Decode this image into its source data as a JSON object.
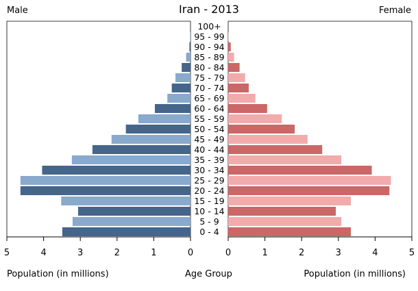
{
  "chart_data": {
    "type": "bar",
    "title": "Iran - 2013",
    "left_label": "Male",
    "right_label": "Female",
    "xlabel_left": "Population (in millions)",
    "xlabel_center": "Age Group",
    "xlabel_right": "Population (in millions)",
    "xlim": [
      0,
      5
    ],
    "x_ticks": [
      "0",
      "1",
      "2",
      "3",
      "4",
      "5"
    ],
    "categories": [
      "100+",
      "95 - 99",
      "90 - 94",
      "85 - 89",
      "80 - 84",
      "75 - 79",
      "70 - 74",
      "65 - 69",
      "60 - 64",
      "55 - 59",
      "50 - 54",
      "45 - 49",
      "40 - 44",
      "35 - 39",
      "30 - 34",
      "25 - 29",
      "20 - 24",
      "15 - 19",
      "10 - 14",
      "5 - 9",
      "0 - 4"
    ],
    "series": [
      {
        "name": "Male",
        "values": [
          0.002,
          0.01,
          0.03,
          0.12,
          0.24,
          0.41,
          0.51,
          0.63,
          0.97,
          1.42,
          1.76,
          2.15,
          2.67,
          3.23,
          4.04,
          4.63,
          4.63,
          3.52,
          3.06,
          3.21,
          3.49
        ]
      },
      {
        "name": "Female",
        "values": [
          0.002,
          0.01,
          0.07,
          0.16,
          0.31,
          0.46,
          0.56,
          0.74,
          1.06,
          1.46,
          1.81,
          2.16,
          2.56,
          3.08,
          3.91,
          4.43,
          4.39,
          3.34,
          2.93,
          3.08,
          3.34
        ]
      }
    ],
    "colors": {
      "male_dark": "#45658a",
      "male_light": "#89a9cd",
      "female_dark": "#cb6767",
      "female_light": "#f2abab"
    },
    "grid": false
  }
}
